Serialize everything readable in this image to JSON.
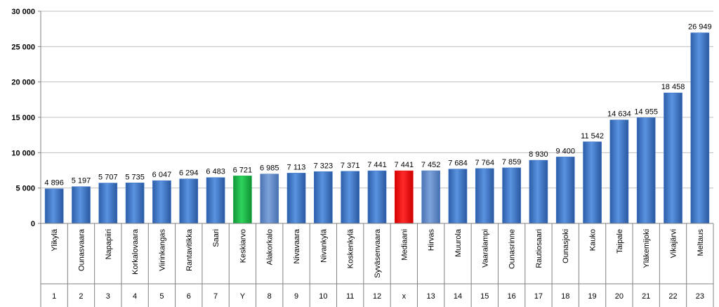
{
  "chart_data": {
    "type": "bar",
    "title": "",
    "xlabel": "",
    "ylabel": "",
    "ylim": [
      0,
      30000
    ],
    "yticks": [
      0,
      5000,
      10000,
      15000,
      20000,
      25000,
      30000
    ],
    "ytick_labels": [
      "0",
      "5 000",
      "10 000",
      "15 000",
      "20 000",
      "25 000",
      "30 000"
    ],
    "grid": true,
    "legend": "none",
    "categories": [
      "Ylikylä",
      "Ounasvaara",
      "Napapiiri",
      "Korkalovaara",
      "Viirinkangas",
      "Rantavitikka",
      "Saari",
      "Keskiarvo",
      "Alakorkalo",
      "Nivavaara",
      "Nivankylä",
      "Koskenkylä",
      "Syväsenvaara",
      "Mediaani",
      "Hirvas",
      "Muurola",
      "Vaaralampi",
      "Ounasrinne",
      "Rautiosaari",
      "Ounasjoki",
      "Kauko",
      "Taipale",
      "Yläkemijoki",
      "Vikajärvi",
      "Meltaus"
    ],
    "category_numbers": [
      "1",
      "2",
      "3",
      "4",
      "5",
      "6",
      "7",
      "Y",
      "8",
      "9",
      "10",
      "11",
      "12",
      "x",
      "13",
      "14",
      "15",
      "16",
      "17",
      "18",
      "19",
      "20",
      "21",
      "22",
      "23"
    ],
    "values": [
      4896,
      5197,
      5707,
      5735,
      6047,
      6294,
      6483,
      6721,
      6985,
      7113,
      7323,
      7371,
      7441,
      7441,
      7452,
      7684,
      7764,
      7859,
      8930,
      9400,
      11542,
      14634,
      14955,
      18458,
      26949
    ],
    "value_labels": [
      "4 896",
      "5 197",
      "5 707",
      "5 735",
      "6 047",
      "6 294",
      "6 483",
      "6 721",
      "6 985",
      "7 113",
      "7 323",
      "7 371",
      "7 441",
      "7 441",
      "7 452",
      "7 684",
      "7 764",
      "7 859",
      "8 930",
      "9 400",
      "11 542",
      "14 634",
      "14 955",
      "18 458",
      "26 949"
    ],
    "bar_styles": [
      "blue",
      "blue",
      "blue",
      "blue",
      "blue",
      "blue",
      "blue",
      "green",
      "lightblue",
      "blue",
      "blue",
      "blue",
      "blue",
      "red",
      "lightblue",
      "blue",
      "blue",
      "blue",
      "blue",
      "blue",
      "blue",
      "blue",
      "blue",
      "blue",
      "blue"
    ],
    "colors": {
      "blue": "#3f78c9",
      "lightblue": "#5b86c8",
      "green": "#1fb84a",
      "red": "#ee1111",
      "grid": "#bfbfbf",
      "axis": "#808080"
    }
  }
}
